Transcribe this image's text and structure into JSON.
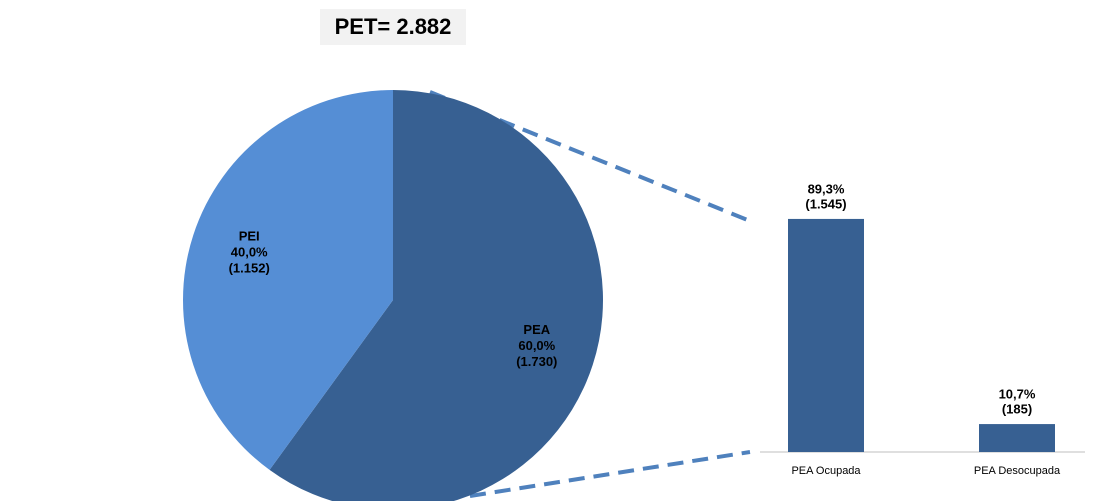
{
  "chart_data": [
    {
      "type": "pie",
      "title": "PET= 2.882",
      "categories": [
        "PEA",
        "PEI"
      ],
      "values": [
        60.0,
        40.0
      ],
      "value_labels": [
        "60,0%",
        "40,0%"
      ],
      "counts": [
        1730,
        1152
      ],
      "count_labels": [
        "(1.730)",
        "(1.152)"
      ],
      "colors": [
        "#376092",
        "#558ed5"
      ]
    },
    {
      "type": "bar",
      "categories": [
        "PEA Ocupada",
        "PEA Desocupada"
      ],
      "values": [
        89.3,
        10.7
      ],
      "value_labels": [
        "89,3%",
        "10,7%"
      ],
      "counts": [
        1545,
        185
      ],
      "count_labels": [
        "(1.545)",
        "(185)"
      ],
      "color": "#376092"
    }
  ]
}
